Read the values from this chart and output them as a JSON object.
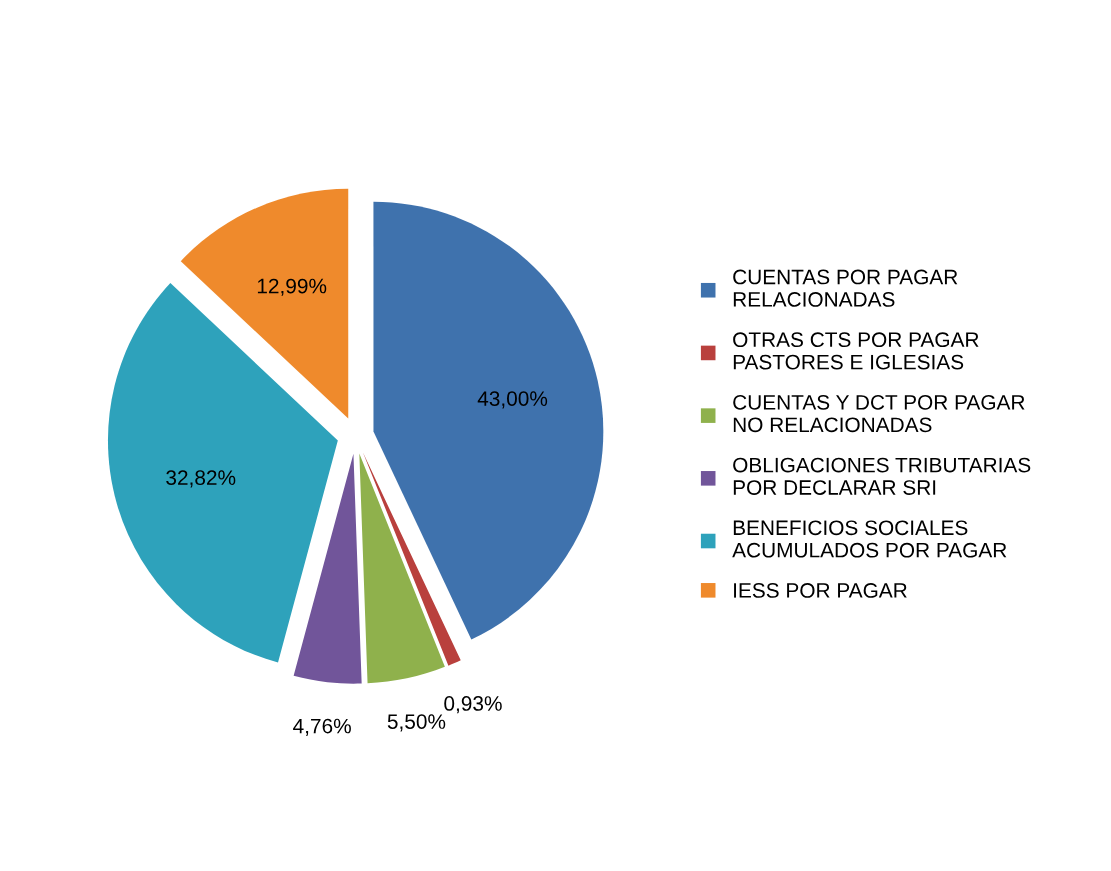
{
  "chart_data": {
    "type": "pie",
    "categories": [
      "CUENTAS POR PAGAR\nRELACIONADAS",
      "OTRAS CTS POR PAGAR\nPASTORES E IGLESIAS",
      "CUENTAS Y DCT POR PAGAR\nNO RELACIONADAS",
      "OBLIGACIONES TRIBUTARIAS\nPOR DECLARAR SRI",
      "BENEFICIOS SOCIALES\nACUMULADOS POR PAGAR",
      "IESS POR PAGAR"
    ],
    "values": [
      43.0,
      0.93,
      5.5,
      4.76,
      32.82,
      12.99
    ],
    "value_labels": [
      "43,00%",
      "0,93%",
      "5,50%",
      "4,76%",
      "32,82%",
      "12,99%"
    ],
    "colors": [
      "#3f72ad",
      "#b9403d",
      "#8fb14c",
      "#71559a",
      "#2ea2bb",
      "#ef8a2c"
    ],
    "legend": "right"
  }
}
